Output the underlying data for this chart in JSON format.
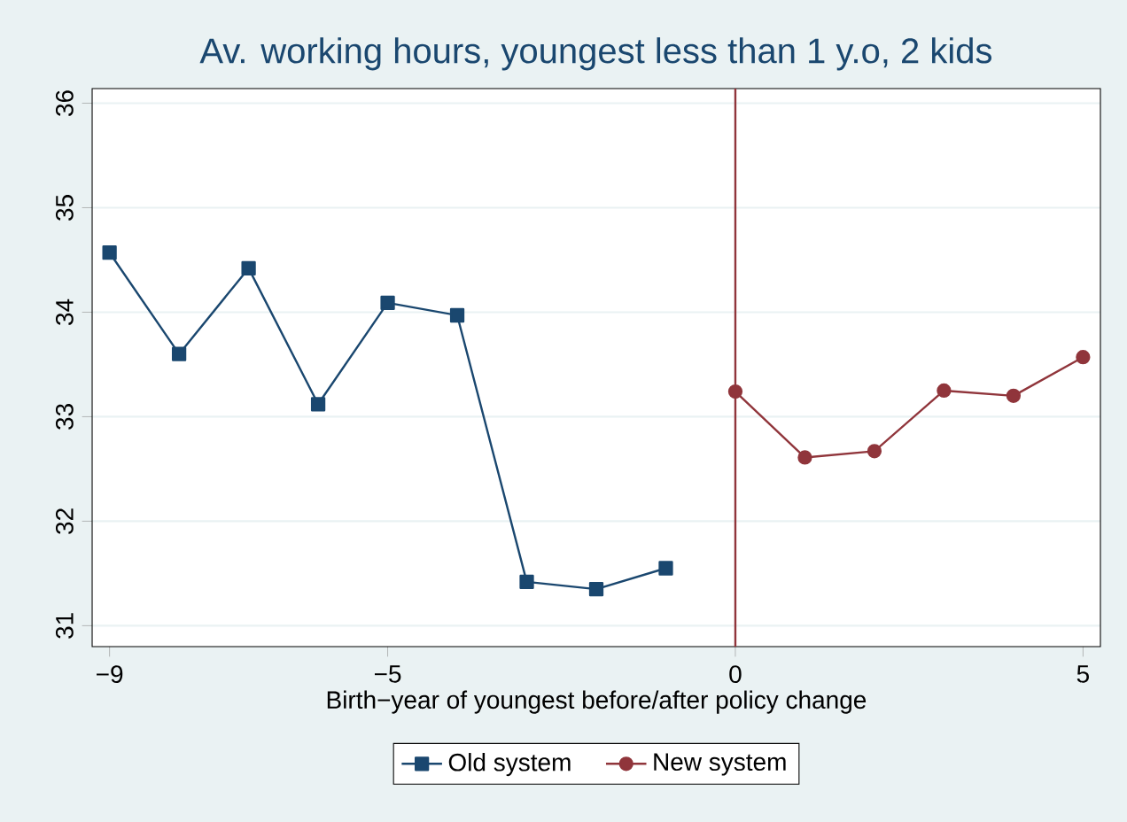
{
  "chart_data": {
    "type": "line",
    "title": "Av. working hours, youngest less than 1 y.o, 2 kids",
    "xlabel": "Birth−year of youngest before/after policy change",
    "series": [
      {
        "name": "Old system",
        "color": "#1a476f",
        "marker": "square",
        "x": [
          -9,
          -8,
          -7,
          -6,
          -5,
          -4,
          -3,
          -2,
          -1
        ],
        "values": [
          34.57,
          33.6,
          34.42,
          33.12,
          34.09,
          33.97,
          31.42,
          31.35,
          31.55
        ]
      },
      {
        "name": "New system",
        "color": "#90353b",
        "marker": "circle",
        "x": [
          0,
          1,
          2,
          3,
          4,
          5
        ],
        "values": [
          33.24,
          32.61,
          32.67,
          33.25,
          33.2,
          33.57
        ]
      }
    ],
    "xlim": [
      -9.25,
      5.25
    ],
    "ylim": [
      30.8,
      36.14
    ],
    "xticks": [
      {
        "value": -9,
        "label": "−9"
      },
      {
        "value": -5,
        "label": "−5"
      },
      0,
      5
    ],
    "yticks": [
      31,
      32,
      33,
      34,
      35,
      36
    ],
    "ref_lines": [
      {
        "axis": "x",
        "value": 0,
        "color": "#90353b"
      }
    ],
    "grid": "y",
    "legend": "bottom",
    "line_style": "solid"
  }
}
